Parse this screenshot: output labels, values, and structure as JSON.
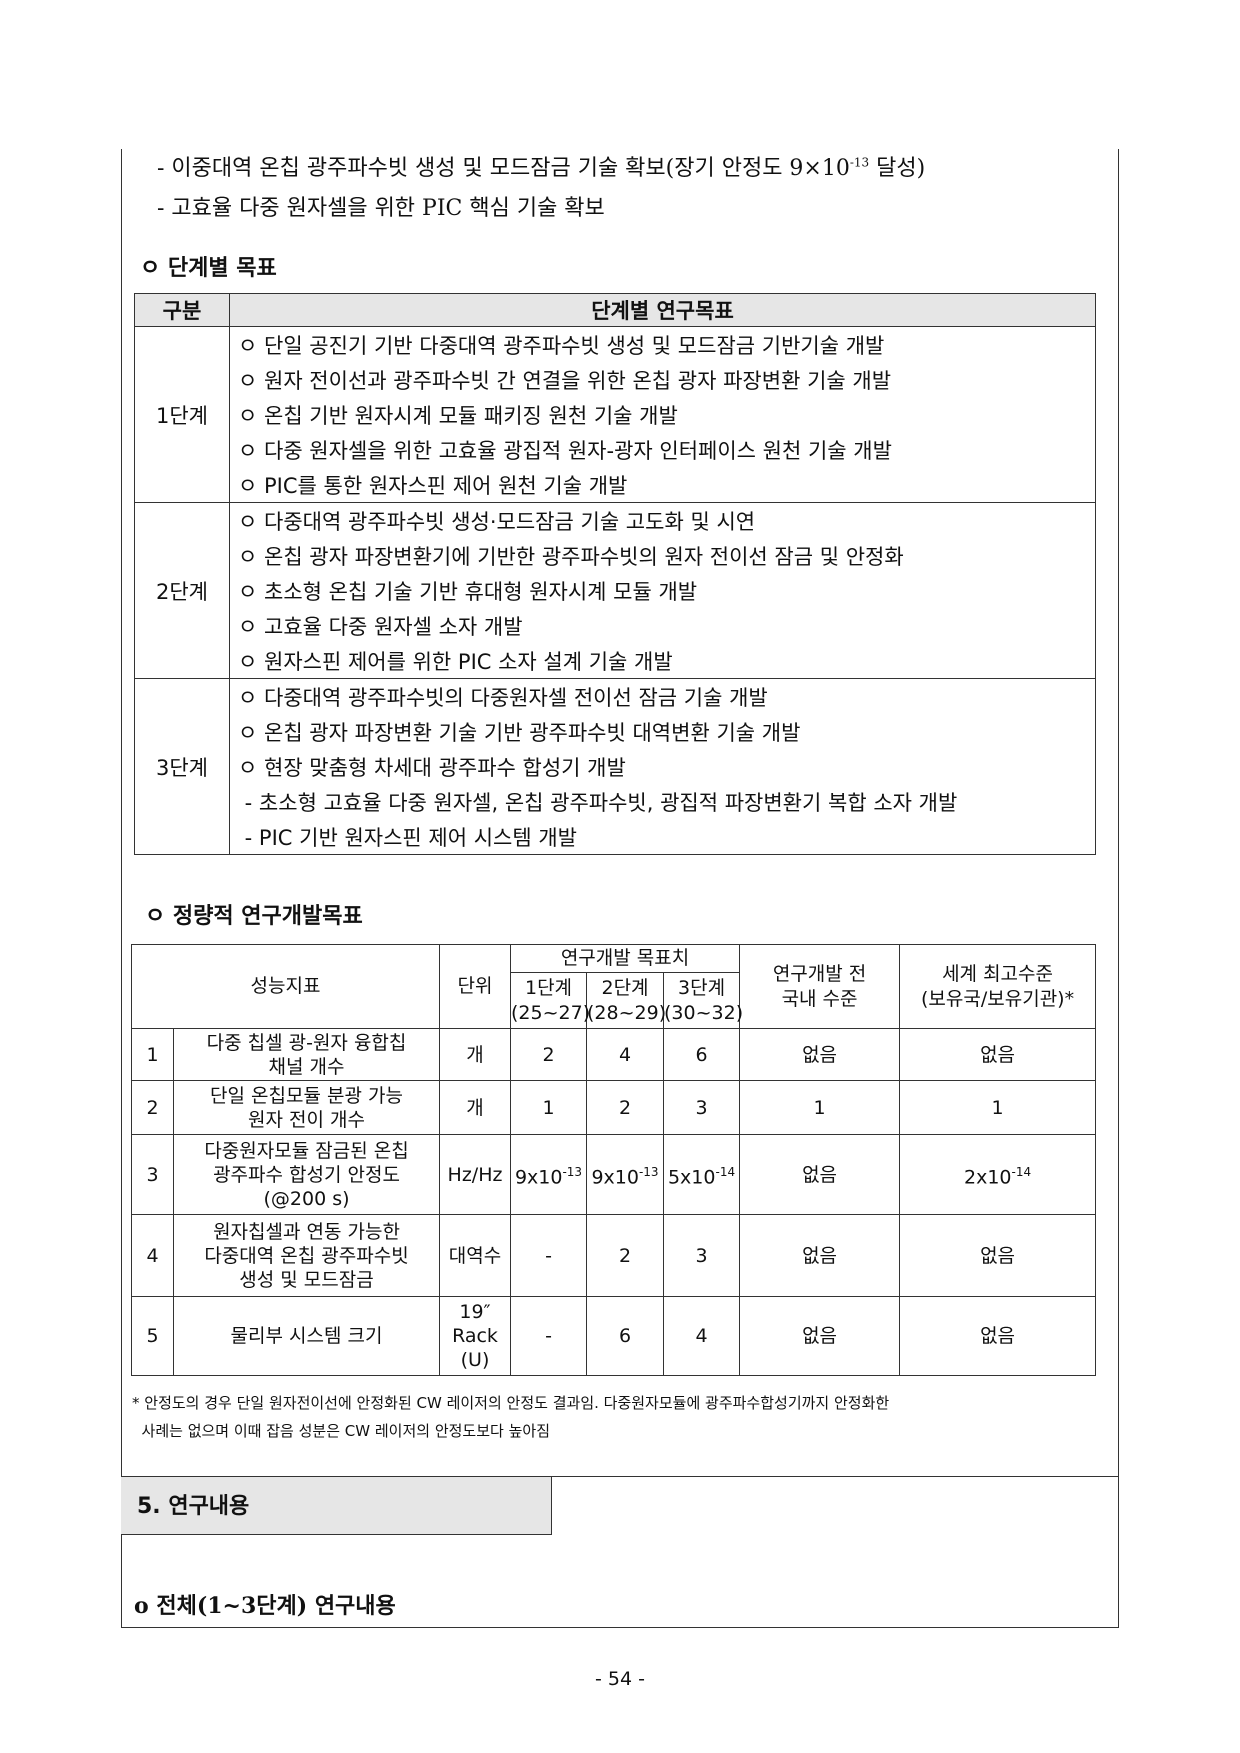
{
  "intro_lines": [
    {
      "text": "- 이중대역 온칩 광주파수빗 생성 및 모드잠금 기술 확보(장기 안정도 9×10",
      "sup": "-13",
      "after": " 달성)"
    },
    {
      "text": "- 고효율 다중 원자셀을 위한 PIC 핵심 기술 확보"
    }
  ],
  "stage_goals": {
    "heading": "ㅇ 단계별 목표",
    "headers": [
      "구분",
      "단계별 연구목표"
    ],
    "stages": [
      {
        "label": "1단계",
        "items": [
          "ㅇ 단일 공진기 기반 다중대역 광주파수빗 생성 및 모드잠금 기반기술 개발",
          "ㅇ 원자 전이선과 광주파수빗 간 연결을 위한 온칩 광자 파장변환 기술 개발",
          "ㅇ 온칩 기반 원자시계 모듈 패키징 원천 기술 개발",
          "ㅇ 다중 원자셀을 위한 고효율 광집적 원자-광자 인터페이스 원천 기술 개발",
          "ㅇ PIC를 통한 원자스핀 제어 원천 기술 개발"
        ]
      },
      {
        "label": "2단계",
        "items": [
          "ㅇ 다중대역 광주파수빗 생성·모드잠금 기술 고도화 및 시연",
          "ㅇ 온칩 광자 파장변환기에 기반한 광주파수빗의 원자 전이선 잠금 및 안정화",
          "ㅇ 초소형 온칩 기술 기반 휴대형 원자시계 모듈 개발",
          "ㅇ 고효율 다중 원자셀 소자 개발",
          "ㅇ 원자스핀 제어를 위한 PIC 소자 설계 기술 개발"
        ]
      },
      {
        "label": "3단계",
        "items": [
          "ㅇ 다중대역 광주파수빗의 다중원자셀 전이선 잠금 기술 개발",
          "ㅇ 온칩 광자 파장변환 기술 기반 광주파수빗 대역변환 기술 개발",
          "ㅇ 현장 맞춤형 차세대 광주파수 합성기 개발",
          " - 초소형 고효율 다중 원자셀, 온칩 광주파수빗, 광집적 파장변환기 복합 소자 개발",
          " - PIC 기반 원자스핀 제어 시스템 개발"
        ]
      }
    ]
  },
  "quant_goals": {
    "heading": "ㅇ 정량적 연구개발목표",
    "headers": {
      "indicator": "성능지표",
      "unit": "단위",
      "target": "연구개발 목표치",
      "stages": [
        {
          "name": "1단계",
          "years": "(25~27)"
        },
        {
          "name": "2단계",
          "years": "(28~29)"
        },
        {
          "name": "3단계",
          "years": "(30~32)"
        }
      ],
      "domestic": [
        "연구개발 전",
        "국내 수준"
      ],
      "world": [
        "세계 최고수준",
        "(보유국/보유기관)*"
      ]
    },
    "rows": [
      {
        "no": "1",
        "indicator": [
          "다중 칩셀 광-원자 융합칩",
          "채널 개수"
        ],
        "unit": [
          "개"
        ],
        "s1": "2",
        "s2": "4",
        "s3": "6",
        "domestic": "없음",
        "world": "없음"
      },
      {
        "no": "2",
        "indicator": [
          "단일 온칩모듈 분광 가능",
          "원자 전이 개수"
        ],
        "unit": [
          "개"
        ],
        "s1": "1",
        "s2": "2",
        "s3": "3",
        "domestic": "1",
        "world": "1"
      },
      {
        "no": "3",
        "indicator": [
          "다중원자모듈 잠금된 온칩",
          "광주파수 합성기  안정도",
          "(@200 s)"
        ],
        "unit": [
          "Hz/Hz"
        ],
        "s1": "9x10",
        "s1_exp": "-13",
        "s2": "9x10",
        "s2_exp": "-13",
        "s3": "5x10",
        "s3_exp": "-14",
        "domestic": "없음",
        "world": "2x10",
        "world_exp": "-14"
      },
      {
        "no": "4",
        "indicator": [
          "원자칩셀과 연동 가능한",
          "다중대역 온칩 광주파수빗",
          "생성 및 모드잠금"
        ],
        "unit": [
          "대역수"
        ],
        "s1": "-",
        "s2": "2",
        "s3": "3",
        "domestic": "없음",
        "world": "없음"
      },
      {
        "no": "5",
        "indicator": [
          "물리부 시스템 크기"
        ],
        "unit": [
          "19″",
          "Rack",
          "(U)"
        ],
        "s1": "-",
        "s2": "6",
        "s3": "4",
        "domestic": "없음",
        "world": "없음"
      }
    ],
    "footnote": [
      "* 안정도의 경우 단일 원자전이선에 안정화된 CW 레이저의 안정도 결과임. 다중원자모듈에 광주파수합성기까지 안정화한",
      "  사례는 없으며 이때 잡음 성분은 CW 레이저의 안정도보다 높아짐"
    ]
  },
  "section5": {
    "title": "5. 연구내용",
    "sub_heading": "o 전체(1~3단계) 연구내용"
  },
  "page_number": "- 54 -"
}
